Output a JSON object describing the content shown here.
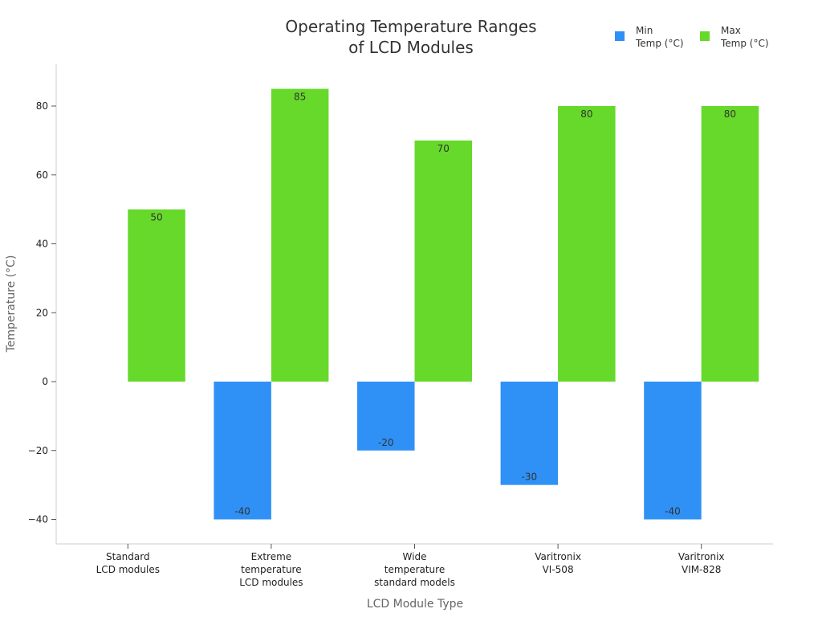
{
  "chart_data": {
    "type": "bar",
    "title": [
      "Operating Temperature Ranges",
      "of LCD Modules"
    ],
    "xlabel": "LCD Module Type",
    "ylabel": "Temperature (°C)",
    "ylim": [
      -45,
      92
    ],
    "yticks": [
      -40,
      -20,
      0,
      20,
      40,
      60,
      80
    ],
    "ytick_labels": [
      "−40",
      "−20",
      "0",
      "20",
      "40",
      "60",
      "80"
    ],
    "categories": [
      [
        "Standard",
        "LCD modules"
      ],
      [
        "Extreme",
        "temperature",
        "LCD modules"
      ],
      [
        "Wide",
        "temperature",
        "standard models"
      ],
      [
        "Varitronix",
        "VI-508"
      ],
      [
        "Varitronix",
        "VIM-828"
      ]
    ],
    "series": [
      {
        "name": [
          "Min",
          "Temp (°C)"
        ],
        "values": [
          0,
          -40,
          -20,
          -30,
          -40
        ],
        "labels": [
          "",
          "-40",
          "-20",
          "-30",
          "-40"
        ],
        "color": "#2f91f5"
      },
      {
        "name": [
          "Max",
          "Temp (°C)"
        ],
        "values": [
          50,
          85,
          70,
          80,
          80
        ],
        "labels": [
          "50",
          "85",
          "70",
          "80",
          "80"
        ],
        "color": "#66d92a"
      }
    ],
    "grid": false,
    "legend": "top-right"
  }
}
